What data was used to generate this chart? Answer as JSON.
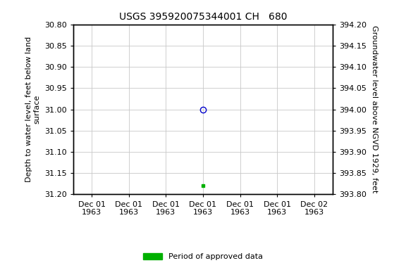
{
  "title": "USGS 395920075344001 CH   680",
  "ylabel_left": "Depth to water level, feet below land\nsurface",
  "ylabel_right": "Groundwater level above NGVD 1929, feet",
  "ylim_left": [
    30.8,
    31.2
  ],
  "ylim_right": [
    393.8,
    394.2
  ],
  "yticks_left": [
    30.8,
    30.85,
    30.9,
    30.95,
    31.0,
    31.05,
    31.1,
    31.15,
    31.2
  ],
  "yticks_right": [
    393.8,
    393.85,
    393.9,
    393.95,
    394.0,
    394.05,
    394.1,
    394.15,
    394.2
  ],
  "xtick_labels": [
    "Dec 01\n1963",
    "Dec 01\n1963",
    "Dec 01\n1963",
    "Dec 01\n1963",
    "Dec 01\n1963",
    "Dec 01\n1963",
    "Dec 02\n1963"
  ],
  "xtick_positions": [
    0,
    1,
    2,
    3,
    4,
    5,
    6
  ],
  "xlim": [
    -0.5,
    6.5
  ],
  "point_blue_x": 3,
  "point_blue_y": 31.0,
  "point_green_x": 3,
  "point_green_y": 31.18,
  "bg_color": "#ffffff",
  "grid_color": "#c8c8c8",
  "title_fontsize": 10,
  "axis_label_fontsize": 8,
  "tick_fontsize": 8,
  "legend_label": "Period of approved data",
  "legend_color": "#00b000",
  "blue_color": "#0000cc"
}
